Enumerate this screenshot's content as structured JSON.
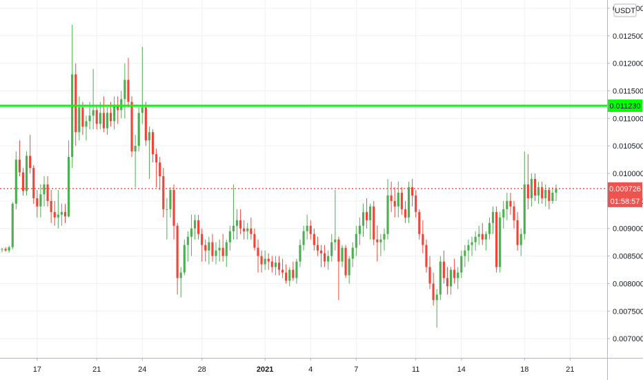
{
  "chart_data": {
    "type": "candlestick",
    "quote_currency": "USDT",
    "colors": {
      "up": "#4caf50",
      "down": "#f44336",
      "grid": "#eef0f3",
      "axis_text": "#131722",
      "hline": "#00ff00",
      "last_price": "#ef5350"
    },
    "ylim": [
      0.00665,
      0.01315
    ],
    "y_ticks": [
      "0.013000",
      "0.012500",
      "0.012000",
      "0.011500",
      "0.011000",
      "0.010500",
      "0.010000",
      "0.009500",
      "0.009000",
      "0.008500",
      "0.008000",
      "0.007500",
      "0.007000"
    ],
    "x_ticks": [
      {
        "label": "17",
        "bold": false
      },
      {
        "label": "21",
        "bold": false
      },
      {
        "label": "24",
        "bold": false
      },
      {
        "label": "28",
        "bold": false
      },
      {
        "label": "2021",
        "bold": true
      },
      {
        "label": "4",
        "bold": false
      },
      {
        "label": "7",
        "bold": false
      },
      {
        "label": "11",
        "bold": false
      },
      {
        "label": "14",
        "bold": false
      },
      {
        "label": "18",
        "bold": false
      },
      {
        "label": "21",
        "bold": false
      }
    ],
    "horizontal_line": {
      "value": 0.01123,
      "label": "0.011230"
    },
    "last_price": {
      "value": 0.009726,
      "label": "0.009726",
      "countdown": "01:58:57"
    },
    "candles": [
      [
        0.00862,
        0.00865,
        0.00857,
        0.00863
      ],
      [
        0.00863,
        0.00866,
        0.00858,
        0.0086
      ],
      [
        0.0086,
        0.00869,
        0.00856,
        0.00866
      ],
      [
        0.00866,
        0.00948,
        0.00862,
        0.00945
      ],
      [
        0.00945,
        0.0104,
        0.00935,
        0.01025
      ],
      [
        0.01025,
        0.0106,
        0.00995,
        0.01002
      ],
      [
        0.01002,
        0.0101,
        0.0096,
        0.00968
      ],
      [
        0.00968,
        0.0104,
        0.0096,
        0.01032
      ],
      [
        0.01032,
        0.0107,
        0.01,
        0.0101
      ],
      [
        0.0101,
        0.01015,
        0.00945,
        0.00955
      ],
      [
        0.00955,
        0.0097,
        0.0092,
        0.0094
      ],
      [
        0.0094,
        0.0098,
        0.0092,
        0.00962
      ],
      [
        0.00962,
        0.00995,
        0.0094,
        0.0098
      ],
      [
        0.0098,
        0.00995,
        0.0094,
        0.0095
      ],
      [
        0.0095,
        0.0097,
        0.0091,
        0.0093
      ],
      [
        0.0093,
        0.0095,
        0.00905,
        0.0092
      ],
      [
        0.0092,
        0.0097,
        0.009,
        0.00925
      ],
      [
        0.00925,
        0.00945,
        0.00905,
        0.0093
      ],
      [
        0.0093,
        0.00945,
        0.0091,
        0.00922
      ],
      [
        0.00922,
        0.0106,
        0.0092,
        0.0103
      ],
      [
        0.0103,
        0.0127,
        0.0101,
        0.0118
      ],
      [
        0.0118,
        0.012,
        0.0105,
        0.01075
      ],
      [
        0.01075,
        0.0114,
        0.0106,
        0.0112
      ],
      [
        0.0112,
        0.0113,
        0.0107,
        0.01085
      ],
      [
        0.01085,
        0.01105,
        0.0106,
        0.01095
      ],
      [
        0.01095,
        0.0113,
        0.0108,
        0.01105
      ],
      [
        0.01105,
        0.0119,
        0.0108,
        0.01115
      ],
      [
        0.01115,
        0.01125,
        0.0108,
        0.0109
      ],
      [
        0.0109,
        0.0113,
        0.0108,
        0.0111
      ],
      [
        0.0111,
        0.0114,
        0.01075,
        0.01082
      ],
      [
        0.01082,
        0.0112,
        0.0107,
        0.0111
      ],
      [
        0.0111,
        0.0113,
        0.01085,
        0.01095
      ],
      [
        0.01095,
        0.0114,
        0.0108,
        0.01125
      ],
      [
        0.01125,
        0.0114,
        0.0109,
        0.01115
      ],
      [
        0.01115,
        0.0115,
        0.011,
        0.01135
      ],
      [
        0.01135,
        0.012,
        0.011,
        0.0117
      ],
      [
        0.0117,
        0.0121,
        0.0112,
        0.0113
      ],
      [
        0.0113,
        0.0114,
        0.0103,
        0.0104
      ],
      [
        0.0104,
        0.0107,
        0.00975,
        0.0105
      ],
      [
        0.0105,
        0.0112,
        0.0104,
        0.0111
      ],
      [
        0.0111,
        0.0123,
        0.0109,
        0.0112
      ],
      [
        0.0112,
        0.0113,
        0.0105,
        0.0106
      ],
      [
        0.0106,
        0.01085,
        0.0099,
        0.01075
      ],
      [
        0.01075,
        0.0108,
        0.0102,
        0.01035
      ],
      [
        0.01035,
        0.01045,
        0.00975,
        0.0102
      ],
      [
        0.0102,
        0.0103,
        0.0097,
        0.00995
      ],
      [
        0.00995,
        0.0101,
        0.0092,
        0.00935
      ],
      [
        0.00935,
        0.00955,
        0.0088,
        0.00935
      ],
      [
        0.00935,
        0.00975,
        0.0092,
        0.0097
      ],
      [
        0.0097,
        0.0098,
        0.0088,
        0.00905
      ],
      [
        0.00905,
        0.0091,
        0.0078,
        0.0081
      ],
      [
        0.0081,
        0.0083,
        0.00775,
        0.0082
      ],
      [
        0.0082,
        0.0088,
        0.00815,
        0.0087
      ],
      [
        0.0087,
        0.00895,
        0.0084,
        0.00885
      ],
      [
        0.00885,
        0.00925,
        0.0085,
        0.009
      ],
      [
        0.009,
        0.00925,
        0.0088,
        0.00915
      ],
      [
        0.00915,
        0.00925,
        0.0088,
        0.0089
      ],
      [
        0.0089,
        0.009,
        0.0084,
        0.0087
      ],
      [
        0.0087,
        0.0088,
        0.0084,
        0.0086
      ],
      [
        0.0086,
        0.00885,
        0.00835,
        0.00875
      ],
      [
        0.00875,
        0.0089,
        0.0084,
        0.0085
      ],
      [
        0.0085,
        0.00875,
        0.00835,
        0.0086
      ],
      [
        0.0086,
        0.0088,
        0.0084,
        0.00865
      ],
      [
        0.00865,
        0.0089,
        0.0084,
        0.0085
      ],
      [
        0.0085,
        0.0088,
        0.0083,
        0.00875
      ],
      [
        0.00875,
        0.00905,
        0.0086,
        0.00895
      ],
      [
        0.00895,
        0.0098,
        0.0088,
        0.00905
      ],
      [
        0.00905,
        0.00935,
        0.0088,
        0.00915
      ],
      [
        0.00915,
        0.00935,
        0.0089,
        0.009
      ],
      [
        0.009,
        0.00915,
        0.0088,
        0.00895
      ],
      [
        0.00895,
        0.0091,
        0.0088,
        0.009
      ],
      [
        0.009,
        0.0092,
        0.0088,
        0.0089
      ],
      [
        0.0089,
        0.009,
        0.0086,
        0.00865
      ],
      [
        0.00865,
        0.0088,
        0.0082,
        0.0085
      ],
      [
        0.0085,
        0.0086,
        0.0082,
        0.00835
      ],
      [
        0.00835,
        0.0086,
        0.00825,
        0.00845
      ],
      [
        0.00845,
        0.00855,
        0.00825,
        0.0084
      ],
      [
        0.0084,
        0.0085,
        0.0082,
        0.0083
      ],
      [
        0.0083,
        0.0085,
        0.00815,
        0.00838
      ],
      [
        0.00838,
        0.0085,
        0.00815,
        0.00825
      ],
      [
        0.00825,
        0.00845,
        0.0081,
        0.0082
      ],
      [
        0.0082,
        0.00835,
        0.008,
        0.00805
      ],
      [
        0.00805,
        0.0083,
        0.00795,
        0.00825
      ],
      [
        0.00825,
        0.0084,
        0.00805,
        0.0081
      ],
      [
        0.0081,
        0.00845,
        0.008,
        0.0084
      ],
      [
        0.0084,
        0.0088,
        0.0083,
        0.0087
      ],
      [
        0.0087,
        0.00905,
        0.0086,
        0.00895
      ],
      [
        0.00895,
        0.00925,
        0.0088,
        0.00905
      ],
      [
        0.00905,
        0.00915,
        0.0088,
        0.0089
      ],
      [
        0.0089,
        0.009,
        0.0086,
        0.0087
      ],
      [
        0.0087,
        0.00885,
        0.0085,
        0.0086
      ],
      [
        0.0086,
        0.0087,
        0.0083,
        0.00855
      ],
      [
        0.00855,
        0.0087,
        0.0083,
        0.0084
      ],
      [
        0.0084,
        0.0086,
        0.00825,
        0.0085
      ],
      [
        0.0085,
        0.0089,
        0.0084,
        0.00875
      ],
      [
        0.00875,
        0.0097,
        0.0086,
        0.0088
      ],
      [
        0.0088,
        0.00885,
        0.0077,
        0.0084
      ],
      [
        0.0084,
        0.0087,
        0.0083,
        0.00865
      ],
      [
        0.00865,
        0.0087,
        0.0081,
        0.00815
      ],
      [
        0.00815,
        0.0085,
        0.008,
        0.00845
      ],
      [
        0.00845,
        0.00875,
        0.0083,
        0.00865
      ],
      [
        0.00865,
        0.00905,
        0.0085,
        0.0089
      ],
      [
        0.0089,
        0.0092,
        0.0087,
        0.00905
      ],
      [
        0.00905,
        0.00945,
        0.00885,
        0.0093
      ],
      [
        0.0093,
        0.00955,
        0.009,
        0.00915
      ],
      [
        0.00915,
        0.00945,
        0.0088,
        0.0094
      ],
      [
        0.0094,
        0.0095,
        0.0087,
        0.0088
      ],
      [
        0.0088,
        0.00905,
        0.0084,
        0.00875
      ],
      [
        0.00875,
        0.0089,
        0.0085,
        0.0088
      ],
      [
        0.0088,
        0.009,
        0.0086,
        0.0089
      ],
      [
        0.0089,
        0.0099,
        0.0088,
        0.0096
      ],
      [
        0.0096,
        0.00985,
        0.0093,
        0.0095
      ],
      [
        0.0095,
        0.00975,
        0.0092,
        0.0094
      ],
      [
        0.0094,
        0.00985,
        0.0092,
        0.00965
      ],
      [
        0.00965,
        0.00975,
        0.00925,
        0.00935
      ],
      [
        0.00935,
        0.0095,
        0.0091,
        0.0092
      ],
      [
        0.0092,
        0.00985,
        0.0091,
        0.00975
      ],
      [
        0.00975,
        0.0099,
        0.0094,
        0.0096
      ],
      [
        0.0096,
        0.0097,
        0.0092,
        0.0093
      ],
      [
        0.0093,
        0.00935,
        0.0088,
        0.0089
      ],
      [
        0.0089,
        0.00915,
        0.00855,
        0.0087
      ],
      [
        0.0087,
        0.0088,
        0.0082,
        0.0083
      ],
      [
        0.0083,
        0.0085,
        0.0079,
        0.008
      ],
      [
        0.008,
        0.0082,
        0.0076,
        0.0077
      ],
      [
        0.0077,
        0.0079,
        0.0072,
        0.0078
      ],
      [
        0.0078,
        0.0085,
        0.0077,
        0.0084
      ],
      [
        0.0084,
        0.0086,
        0.008,
        0.0081
      ],
      [
        0.0081,
        0.0083,
        0.0078,
        0.00795
      ],
      [
        0.00795,
        0.0083,
        0.0078,
        0.00825
      ],
      [
        0.00825,
        0.00845,
        0.008,
        0.0081
      ],
      [
        0.0081,
        0.0083,
        0.0079,
        0.0082
      ],
      [
        0.0082,
        0.0086,
        0.0081,
        0.0085
      ],
      [
        0.0085,
        0.0087,
        0.0083,
        0.0086
      ],
      [
        0.0086,
        0.0088,
        0.0084,
        0.0087
      ],
      [
        0.0087,
        0.00885,
        0.0085,
        0.00875
      ],
      [
        0.00875,
        0.00895,
        0.0086,
        0.00885
      ],
      [
        0.00885,
        0.00905,
        0.0087,
        0.0089
      ],
      [
        0.0089,
        0.0091,
        0.0087,
        0.0088
      ],
      [
        0.0088,
        0.00895,
        0.0086,
        0.0089
      ],
      [
        0.0089,
        0.0092,
        0.0088,
        0.0091
      ],
      [
        0.0091,
        0.0094,
        0.0089,
        0.0093
      ],
      [
        0.0093,
        0.0094,
        0.0082,
        0.0083
      ],
      [
        0.0083,
        0.0093,
        0.0082,
        0.0092
      ],
      [
        0.0092,
        0.0095,
        0.009,
        0.00935
      ],
      [
        0.00935,
        0.00965,
        0.00915,
        0.0095
      ],
      [
        0.0095,
        0.00965,
        0.00925,
        0.0094
      ],
      [
        0.0094,
        0.0095,
        0.009,
        0.00915
      ],
      [
        0.00915,
        0.0093,
        0.0086,
        0.0087
      ],
      [
        0.0087,
        0.009,
        0.0085,
        0.0089
      ],
      [
        0.0089,
        0.0104,
        0.0088,
        0.0098
      ],
      [
        0.0098,
        0.01035,
        0.00935,
        0.00955
      ],
      [
        0.00955,
        0.01,
        0.0094,
        0.0099
      ],
      [
        0.0099,
        0.01,
        0.0095,
        0.0096
      ],
      [
        0.0096,
        0.00985,
        0.00945,
        0.00975
      ],
      [
        0.00975,
        0.00985,
        0.00945,
        0.00955
      ],
      [
        0.00955,
        0.0098,
        0.0094,
        0.0097
      ],
      [
        0.0097,
        0.00975,
        0.00935,
        0.0095
      ],
      [
        0.0095,
        0.00975,
        0.00945,
        0.00965
      ],
      [
        0.00965,
        0.0098,
        0.0095,
        0.009726
      ]
    ]
  }
}
